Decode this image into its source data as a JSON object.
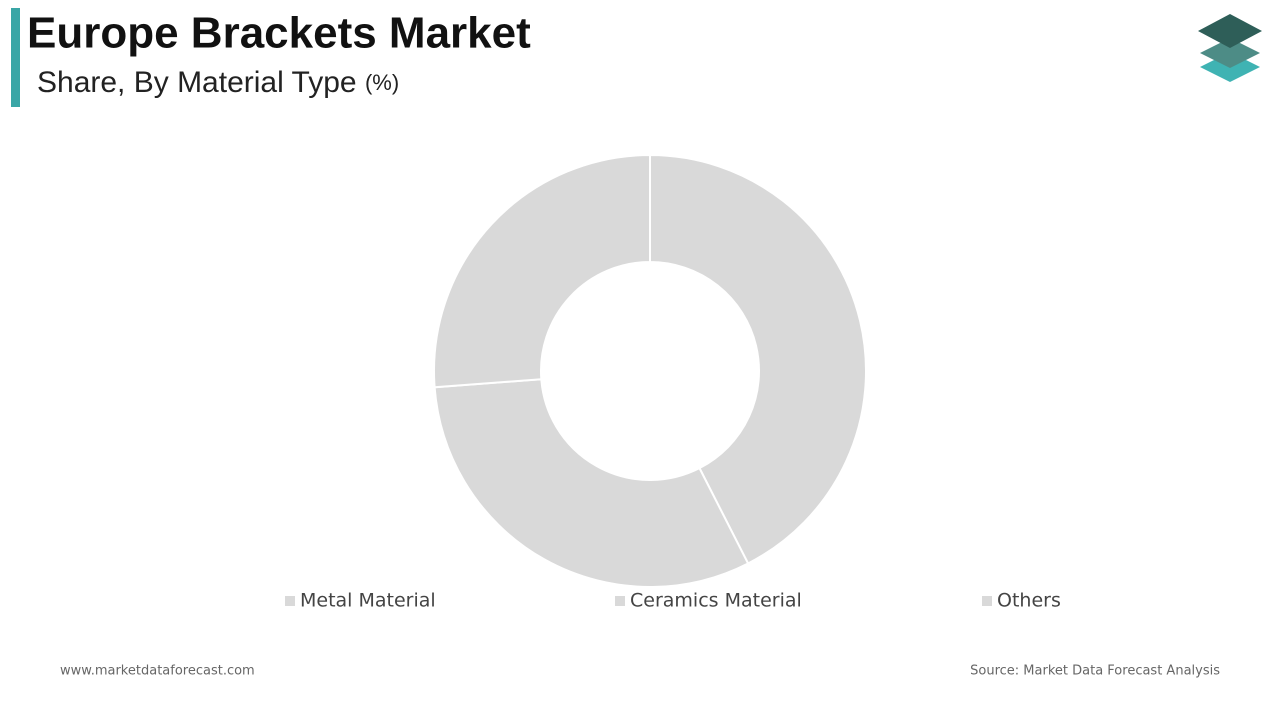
{
  "chart_data": {
    "type": "donut",
    "title": "Europe Brackets Market",
    "subtitle": "Share, By Material Type",
    "unit": "(%)",
    "categories": [
      "Metal Material",
      "Ceramics Material",
      "Others"
    ],
    "values": [
      42.5,
      31.3,
      26.2
    ],
    "colors": [
      "#d9d9d9",
      "#d9d9d9",
      "#d9d9d9"
    ]
  },
  "footer": {
    "website": "www.marketdataforecast.com",
    "source": "Source: Market Data Forecast Analysis"
  }
}
